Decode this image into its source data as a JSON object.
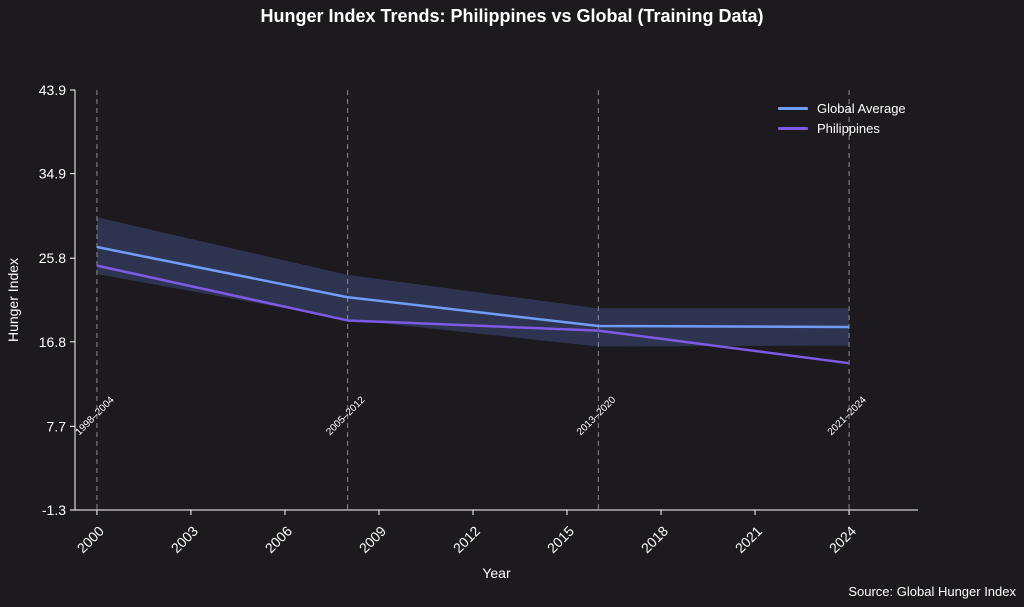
{
  "title": "Hunger Index Trends: Philippines vs Global (Training Data)",
  "source": "Source: Global Hunger Index",
  "colors": {
    "background": "#1c1a1f",
    "global": "#6f9cf7",
    "philippines": "#7d5ae6",
    "band": "#3a4670",
    "grid_line": "#8a8a8a",
    "axis": "#ffffff"
  },
  "chart_data": {
    "type": "line",
    "xlabel": "Year",
    "ylabel": "Hunger Index",
    "xlim": [
      1999.3,
      2026.2
    ],
    "ylim": [
      -1.3,
      43.9
    ],
    "x_ticks": [
      2000,
      2003,
      2006,
      2009,
      2012,
      2015,
      2018,
      2021,
      2024
    ],
    "y_ticks": [
      "-1.3",
      "7.7",
      "16.8",
      "25.8",
      "34.9",
      "43.9"
    ],
    "y_tick_values": [
      -1.3,
      7.7,
      16.8,
      25.8,
      34.9,
      43.9
    ],
    "series": [
      {
        "name": "Global Average",
        "x": [
          2000,
          2008,
          2016,
          2024
        ],
        "values": [
          27.0,
          21.6,
          18.5,
          18.4
        ]
      },
      {
        "name": "Philippines",
        "x": [
          2000,
          2008,
          2016,
          2024
        ],
        "values": [
          25.0,
          19.1,
          18.0,
          14.5
        ]
      }
    ],
    "band": {
      "x": [
        2000,
        2008,
        2016,
        2024
      ],
      "upper": [
        30.2,
        24.0,
        20.4,
        20.4
      ],
      "lower": [
        24.1,
        19.2,
        16.3,
        16.4
      ]
    },
    "periods": [
      {
        "x": 2000,
        "label": "1998–2004"
      },
      {
        "x": 2008,
        "label": "2005–2012"
      },
      {
        "x": 2016,
        "label": "2013–2020"
      },
      {
        "x": 2024,
        "label": "2021–2024"
      }
    ],
    "legend_position": "top-right",
    "grid": false
  }
}
